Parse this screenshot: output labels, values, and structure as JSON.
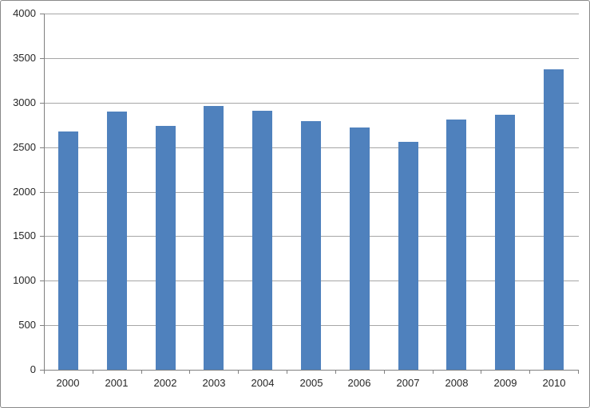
{
  "chart_data": {
    "type": "bar",
    "title": "",
    "xlabel": "",
    "ylabel": "",
    "categories": [
      "2000",
      "2001",
      "2002",
      "2003",
      "2004",
      "2005",
      "2006",
      "2007",
      "2008",
      "2009",
      "2010"
    ],
    "values": [
      2680,
      2900,
      2740,
      2960,
      2910,
      2790,
      2720,
      2560,
      2810,
      2860,
      3370
    ],
    "ylim": [
      0,
      4000
    ],
    "yticks": [
      0,
      500,
      1000,
      1500,
      2000,
      2500,
      3000,
      3500,
      4000
    ],
    "grid": true,
    "legend": false,
    "colors": {
      "bar": "#4f81bd",
      "gridline": "#a6a6a6",
      "axis": "#808080",
      "label_text": "#262626",
      "frame_border": "#898989",
      "background": "#ffffff"
    }
  }
}
